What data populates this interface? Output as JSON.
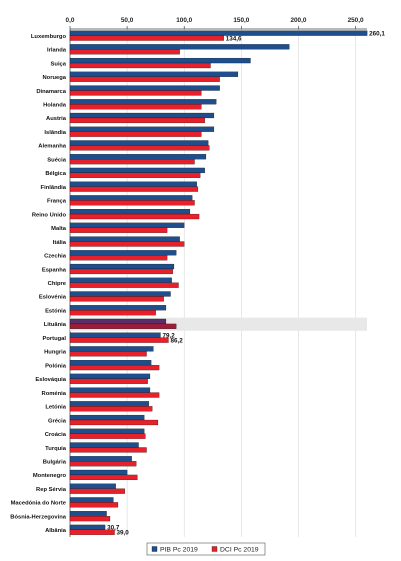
{
  "chart_data": {
    "type": "bar",
    "orientation": "horizontal",
    "title": "",
    "xlabel": "",
    "ylabel": "",
    "xlim": [
      0,
      260
    ],
    "x_ticks": [
      0,
      50,
      100,
      150,
      200,
      250
    ],
    "x_tick_labels": [
      "0,0",
      "50,0",
      "100,0",
      "150,0",
      "200,0",
      "250,0"
    ],
    "x_axis_position": "top",
    "grid": true,
    "legend_position": "bottom-right",
    "categories": [
      "Luxemburgo",
      "Irlanda",
      "Suiça",
      "Noruega",
      "Dinamarca",
      "Holanda",
      "Austria",
      "Islândia",
      "Alemanha",
      "Suécia",
      "Bélgica",
      "Finlândia",
      "França",
      "Reino Unido",
      "Malta",
      "Itália",
      "Czechia",
      "Espanha",
      "Chipre",
      "Eslovénia",
      "Estónia",
      "Lituânia",
      "Portugal",
      "Hungria",
      "Polónia",
      "Eslováquia",
      "Roménia",
      "Letónia",
      "Grécia",
      "Croácia",
      "Turquia",
      "Bulgária",
      "Montenegro",
      "Rep Sérvia",
      "Macedónia do Norte",
      "Bósnia-Herzegovina",
      "Albânia"
    ],
    "series": [
      {
        "name": "PIB Pc 2019",
        "color": "#1f4e8c",
        "values": [
          260.1,
          192,
          158,
          147,
          131,
          128,
          126,
          126,
          121,
          119,
          118,
          111,
          107,
          105,
          100,
          96,
          93,
          91,
          89,
          88,
          84,
          84,
          79.2,
          73,
          71,
          70,
          70,
          69,
          65,
          65,
          60,
          54,
          50,
          40,
          38,
          32,
          30.7
        ]
      },
      {
        "name": "DCI Pc 2019",
        "color": "#e8202a",
        "values": [
          134.6,
          96,
          123,
          131,
          115,
          115,
          118,
          115,
          122,
          109,
          114,
          112,
          109,
          113,
          85,
          100,
          85,
          90,
          95,
          82,
          75,
          93,
          86.2,
          67,
          78,
          68,
          78,
          72,
          77,
          66,
          67,
          58,
          59,
          48,
          42,
          35,
          39.0
        ]
      }
    ],
    "data_labels": [
      {
        "category": "Luxemburgo",
        "series": "PIB Pc 2019",
        "text": "260,1"
      },
      {
        "category": "Luxemburgo",
        "series": "DCI Pc 2019",
        "text": "134,6"
      },
      {
        "category": "Portugal",
        "series": "PIB Pc 2019",
        "text": "79,2"
      },
      {
        "category": "Portugal",
        "series": "DCI Pc 2019",
        "text": "86,2"
      },
      {
        "category": "Albânia",
        "series": "PIB Pc 2019",
        "text": "30,7"
      },
      {
        "category": "Albânia",
        "series": "DCI Pc 2019",
        "text": "39,0"
      }
    ],
    "highlight_category": "Lituânia"
  }
}
